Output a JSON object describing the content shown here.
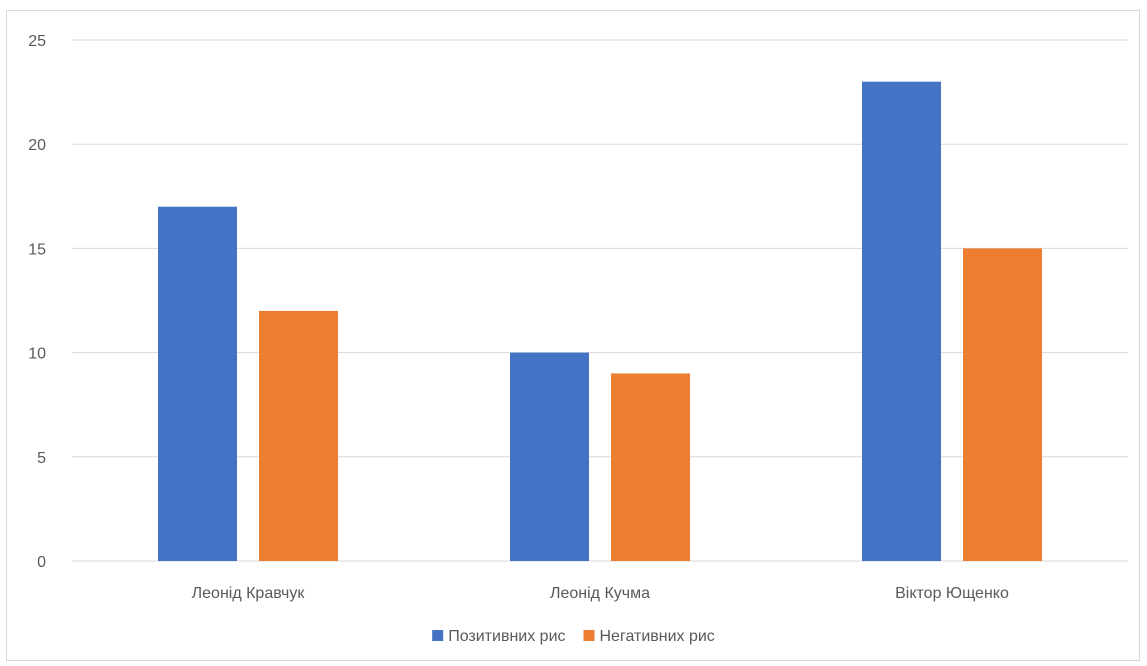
{
  "chart_data": {
    "type": "bar",
    "categories": [
      "Леонід Кравчук",
      "Леонід Кучма",
      "Віктор Ющенко"
    ],
    "series": [
      {
        "name": "Позитивних рис",
        "values": [
          17,
          10,
          23
        ],
        "color": "#4472c4"
      },
      {
        "name": "Негативних рис",
        "values": [
          12,
          9,
          15
        ],
        "color": "#ed7d31"
      }
    ],
    "ylim": [
      0,
      25
    ],
    "yticks": [
      0,
      5,
      10,
      15,
      20,
      25
    ],
    "grid": true,
    "legend_position": "bottom"
  }
}
